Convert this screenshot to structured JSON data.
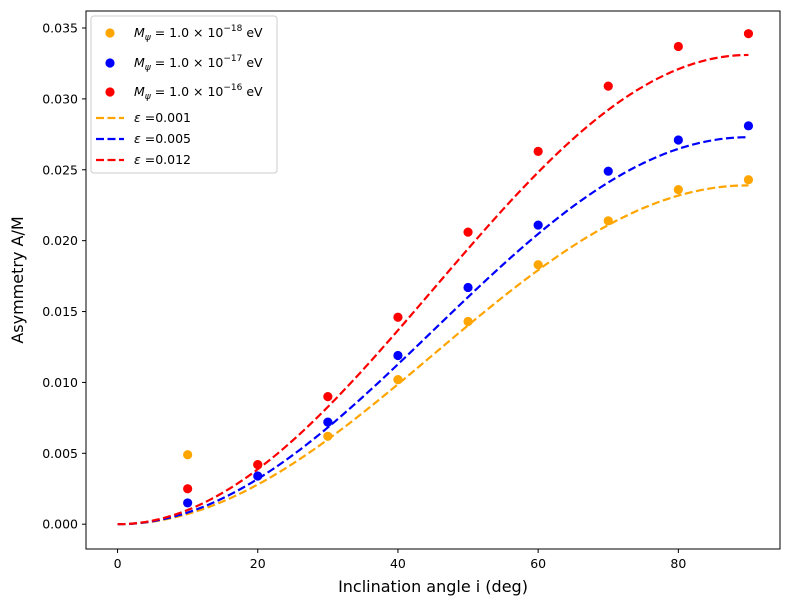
{
  "chart_data": {
    "type": "scatter",
    "title": "",
    "xlabel": "Inclination angle i (deg)",
    "ylabel": "Asymmetry A/M",
    "xlim": [
      -4.5,
      94.5
    ],
    "ylim": [
      -0.00175,
      0.0362
    ],
    "xticks": [
      0,
      20,
      40,
      60,
      80
    ],
    "xtick_labels": [
      "0",
      "20",
      "40",
      "60",
      "80"
    ],
    "yticks": [
      0.0,
      0.005,
      0.01,
      0.015,
      0.02,
      0.025,
      0.03,
      0.035
    ],
    "ytick_labels": [
      "0.000",
      "0.005",
      "0.010",
      "0.015",
      "0.020",
      "0.025",
      "0.030",
      "0.035"
    ],
    "legend_position": "top-left",
    "x": [
      10,
      20,
      30,
      40,
      50,
      60,
      70,
      80,
      90
    ],
    "scatter_series": [
      {
        "name": "M_ψ = 1.0 × 10^-18 eV",
        "label_base": "M",
        "label_sub": "ψ",
        "label_mid": " = 1.0 × 10",
        "label_exp": "−18",
        "label_unit": " eV",
        "color": "#ffa500",
        "values": [
          0.0049,
          0.0042,
          0.0062,
          0.0102,
          0.0143,
          0.0183,
          0.0214,
          0.0236,
          0.0243
        ]
      },
      {
        "name": "M_ψ = 1.0 × 10^-17 eV",
        "label_base": "M",
        "label_sub": "ψ",
        "label_mid": " = 1.0 × 10",
        "label_exp": "−17",
        "label_unit": " eV",
        "color": "#0000ff",
        "values": [
          0.0015,
          0.0034,
          0.0072,
          0.0119,
          0.0167,
          0.0211,
          0.0249,
          0.0271,
          0.0281
        ]
      },
      {
        "name": "M_ψ = 1.0 × 10^-16 eV",
        "label_base": "M",
        "label_sub": "ψ",
        "label_mid": " = 1.0 × 10",
        "label_exp": "−16",
        "label_unit": " eV",
        "color": "#ff0000",
        "values": [
          0.0025,
          0.0042,
          0.009,
          0.0146,
          0.0206,
          0.0263,
          0.0309,
          0.0337,
          0.0346
        ]
      }
    ],
    "line_series": [
      {
        "name": "ε =0.001",
        "label_sym": "ε",
        "label_rest": " =0.001",
        "color": "#ffa500",
        "style": "dashed",
        "amplitude": 0.0239
      },
      {
        "name": "ε =0.005",
        "label_sym": "ε",
        "label_rest": " =0.005",
        "color": "#0000ff",
        "style": "dashed",
        "amplitude": 0.0273
      },
      {
        "name": "ε =0.012",
        "label_sym": "ε",
        "label_rest": " =0.012",
        "color": "#ff0000",
        "style": "dashed",
        "amplitude": 0.0331
      }
    ]
  }
}
